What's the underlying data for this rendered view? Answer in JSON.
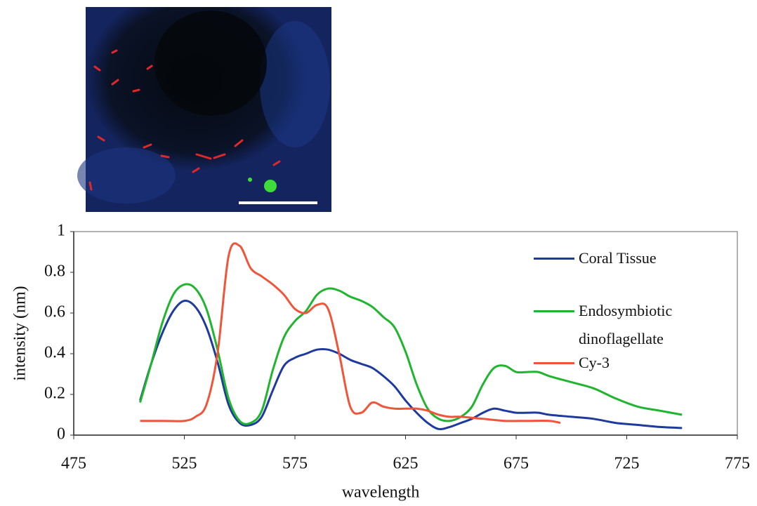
{
  "chart_data": {
    "type": "line",
    "xlabel": "wavelength",
    "ylabel": "intensity (nm)",
    "xlim": [
      475,
      775
    ],
    "xticks": [
      475,
      525,
      575,
      625,
      675,
      725,
      775
    ],
    "ylim": [
      0,
      1
    ],
    "yticks": [
      0,
      0.2,
      0.4,
      0.6,
      0.8,
      1
    ],
    "series": [
      {
        "name": "Coral Tissue",
        "color": "#1f3a9e",
        "x": [
          505,
          510,
          515,
          520,
          525,
          530,
          535,
          540,
          545,
          550,
          555,
          560,
          565,
          570,
          575,
          580,
          585,
          590,
          595,
          600,
          605,
          610,
          615,
          620,
          625,
          630,
          635,
          640,
          645,
          650,
          655,
          660,
          665,
          670,
          675,
          680,
          685,
          690,
          700,
          710,
          720,
          730,
          740,
          750
        ],
        "values": [
          0.17,
          0.35,
          0.5,
          0.61,
          0.66,
          0.63,
          0.53,
          0.36,
          0.15,
          0.06,
          0.05,
          0.09,
          0.22,
          0.34,
          0.38,
          0.4,
          0.42,
          0.42,
          0.4,
          0.37,
          0.35,
          0.33,
          0.29,
          0.24,
          0.17,
          0.11,
          0.06,
          0.03,
          0.04,
          0.06,
          0.08,
          0.11,
          0.13,
          0.12,
          0.11,
          0.11,
          0.11,
          0.1,
          0.09,
          0.08,
          0.06,
          0.05,
          0.04,
          0.035
        ]
      },
      {
        "name": "Endosymbiotic dinoflagellate",
        "color": "#1fb52e",
        "x": [
          505,
          510,
          515,
          520,
          525,
          530,
          535,
          540,
          545,
          550,
          555,
          560,
          565,
          570,
          575,
          580,
          585,
          590,
          595,
          600,
          605,
          610,
          615,
          620,
          625,
          630,
          635,
          640,
          645,
          650,
          655,
          660,
          665,
          670,
          675,
          680,
          685,
          690,
          700,
          710,
          720,
          730,
          740,
          750
        ],
        "values": [
          0.16,
          0.35,
          0.55,
          0.69,
          0.74,
          0.72,
          0.62,
          0.42,
          0.18,
          0.07,
          0.06,
          0.12,
          0.32,
          0.48,
          0.56,
          0.61,
          0.69,
          0.72,
          0.71,
          0.68,
          0.66,
          0.63,
          0.58,
          0.53,
          0.41,
          0.25,
          0.13,
          0.08,
          0.07,
          0.09,
          0.14,
          0.25,
          0.33,
          0.34,
          0.31,
          0.31,
          0.31,
          0.29,
          0.26,
          0.23,
          0.18,
          0.14,
          0.12,
          0.1
        ]
      },
      {
        "name": "Cy-3",
        "color": "#f0553a",
        "x": [
          505,
          515,
          525,
          530,
          535,
          540,
          545,
          550,
          555,
          560,
          565,
          570,
          575,
          580,
          585,
          590,
          595,
          600,
          605,
          610,
          615,
          620,
          625,
          630,
          635,
          640,
          645,
          650,
          660,
          670,
          680,
          690,
          695
        ],
        "values": [
          0.07,
          0.07,
          0.07,
          0.09,
          0.15,
          0.4,
          0.88,
          0.93,
          0.82,
          0.78,
          0.74,
          0.69,
          0.62,
          0.6,
          0.64,
          0.62,
          0.4,
          0.14,
          0.11,
          0.16,
          0.14,
          0.13,
          0.13,
          0.13,
          0.12,
          0.1,
          0.09,
          0.09,
          0.08,
          0.07,
          0.07,
          0.07,
          0.06
        ]
      }
    ]
  }
}
